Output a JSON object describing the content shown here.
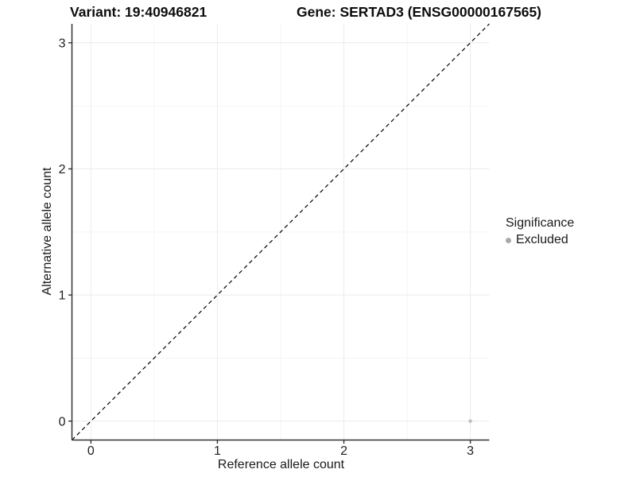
{
  "chart_data": {
    "type": "scatter",
    "title_left": "Variant: 19:40946821",
    "title_right": "Gene: SERTAD3 (ENSG00000167565)",
    "xlabel": "Reference allele count",
    "ylabel": "Alternative allele count",
    "xlim": [
      -0.15,
      3.15
    ],
    "ylim": [
      -0.15,
      3.15
    ],
    "x_ticks": [
      0,
      1,
      2,
      3
    ],
    "y_ticks": [
      0,
      1,
      2,
      3
    ],
    "x_minor_ticks": [
      0.5,
      1.5,
      2.5
    ],
    "y_minor_ticks": [
      0.5,
      1.5,
      2.5
    ],
    "grid": true,
    "reference_line": {
      "style": "dashed",
      "from": [
        -0.15,
        -0.15
      ],
      "to": [
        3.15,
        3.15
      ],
      "color": "#000000"
    },
    "series": [
      {
        "name": "Excluded",
        "color": "#bfbfbf",
        "points": [
          {
            "x": 3,
            "y": 0
          }
        ]
      }
    ],
    "legend": {
      "title": "Significance",
      "position": "right",
      "entries": [
        {
          "label": "Excluded",
          "color": "#a9a9a9"
        }
      ]
    }
  },
  "colors": {
    "background": "#ffffff",
    "grid_major": "#ebebeb",
    "grid_minor": "#f5f5f5",
    "axis_line": "#333333",
    "tick_label": "#1f1f1f"
  }
}
